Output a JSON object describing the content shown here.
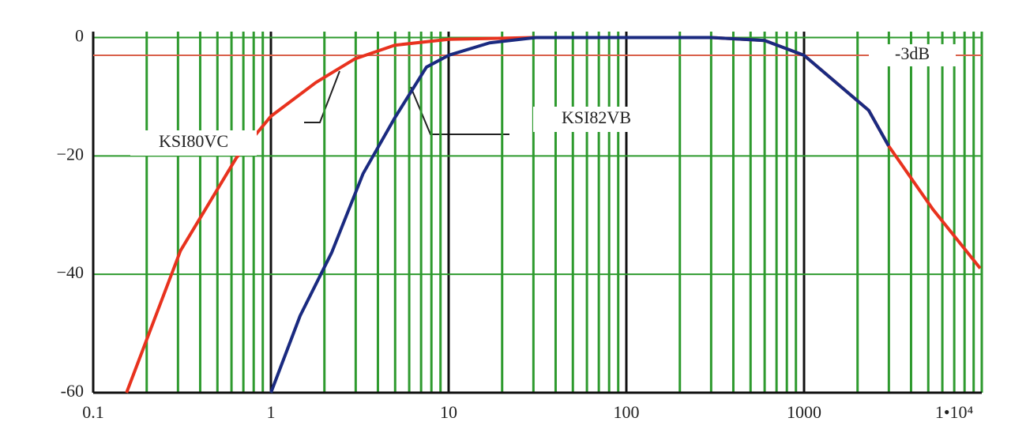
{
  "chart_data": {
    "type": "line",
    "xlog": true,
    "xlim": [
      0.1,
      10000
    ],
    "ylim": [
      -60,
      1
    ],
    "xticks": [
      0.1,
      1,
      10,
      100,
      1000,
      {
        "value": 10000,
        "label": "1•10⁴"
      }
    ],
    "yticks": [
      0,
      {
        "value": -20,
        "label": "−20"
      },
      {
        "value": -40,
        "label": "−40"
      },
      -60
    ],
    "grid": true,
    "minor_grid": true,
    "grid_color": "#2e9a2e",
    "hline": {
      "value": -3,
      "label": "-3dB",
      "color": "#d9604a"
    },
    "series": [
      {
        "name": "KSI80VC",
        "color": "#e8321e",
        "x": [
          0.154,
          0.31,
          0.64,
          1,
          1.79,
          2.97,
          4.97,
          10,
          30,
          300,
          600,
          1000,
          2310,
          2990,
          5300,
          9800
        ],
        "values": [
          -60,
          -36,
          -20.3,
          -13.3,
          -7.6,
          -3.6,
          -1.3,
          -0.3,
          0,
          0,
          -0.5,
          -3,
          -12.3,
          -18.3,
          -29,
          -39
        ]
      },
      {
        "name": "KSI82VB",
        "color": "#1a2a80",
        "x": [
          1,
          1.46,
          2.2,
          3.3,
          4.97,
          7.5,
          10,
          17,
          31,
          300,
          600,
          1000,
          2310,
          2990
        ],
        "values": [
          -60,
          -47,
          -36.3,
          -23,
          -13.6,
          -5,
          -3,
          -0.9,
          0,
          0,
          -0.5,
          -3,
          -12.3,
          -18.3
        ]
      }
    ]
  }
}
